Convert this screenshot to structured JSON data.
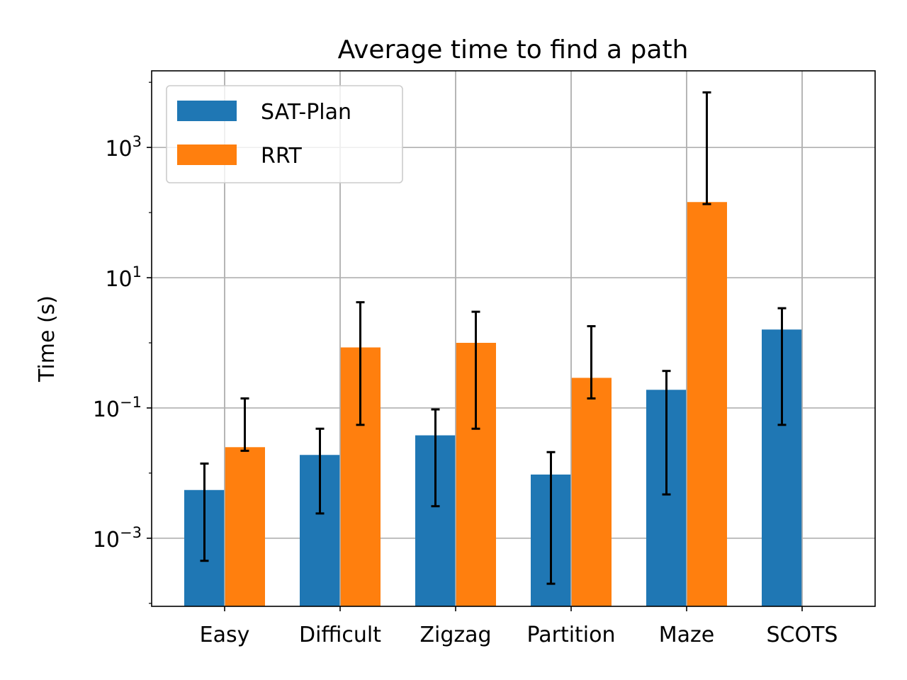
{
  "chart_data": {
    "type": "bar",
    "title": "Average time to find a path",
    "xlabel": "",
    "ylabel": "Time (s)",
    "yscale": "log",
    "ylim": [
      9e-05,
      15000
    ],
    "yticks": [
      {
        "value": 0.001,
        "base": "10",
        "exp": "−3"
      },
      {
        "value": 0.1,
        "base": "10",
        "exp": "−1"
      },
      {
        "value": 10,
        "base": "10",
        "exp": "1"
      },
      {
        "value": 1000,
        "base": "10",
        "exp": "3"
      }
    ],
    "grid": true,
    "legend_position": "top-left",
    "categories": [
      "Easy",
      "Difficult",
      "Zigzag",
      "Partition",
      "Maze",
      "SCOTS"
    ],
    "series": [
      {
        "name": "SAT-Plan",
        "color": "#1f77b4",
        "values": [
          0.0055,
          0.019,
          0.038,
          0.0095,
          0.19,
          1.6
        ],
        "err_low": [
          0.00045,
          0.0024,
          0.0031,
          0.0002,
          0.0047,
          0.055
        ],
        "err_high": [
          0.014,
          0.048,
          0.095,
          0.021,
          0.37,
          3.4
        ]
      },
      {
        "name": "RRT",
        "color": "#ff7f0e",
        "values": [
          0.025,
          0.85,
          1.0,
          0.29,
          145,
          null
        ],
        "err_low": [
          0.022,
          0.055,
          0.048,
          0.14,
          135,
          null
        ],
        "err_high": [
          0.14,
          4.2,
          3.0,
          1.8,
          7000,
          null
        ]
      }
    ]
  }
}
